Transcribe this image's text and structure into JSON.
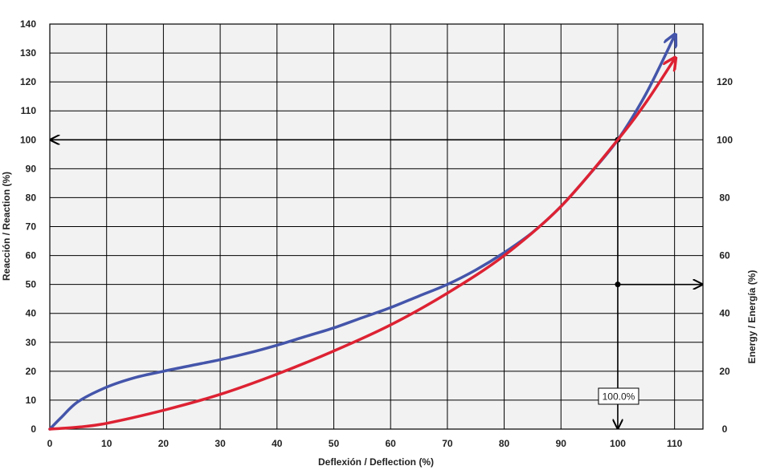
{
  "chart_data": {
    "type": "line",
    "xlabel": "Deflexión / Deflection (%)",
    "ylabel": "Reacción / Reaction (%)",
    "y2label": "Energy / Energía (%)",
    "xlim": [
      0,
      115
    ],
    "ylim": [
      0,
      140
    ],
    "y2lim": [
      0,
      140
    ],
    "x_ticks": [
      0,
      10,
      20,
      30,
      40,
      50,
      60,
      70,
      80,
      90,
      100,
      110
    ],
    "y_ticks": [
      0,
      10,
      20,
      30,
      40,
      50,
      60,
      70,
      80,
      90,
      100,
      110,
      120,
      130,
      140
    ],
    "y2_ticks": [
      0,
      20,
      40,
      60,
      80,
      100,
      120
    ],
    "grid": true,
    "plot_background": "#f2f2f2",
    "series": [
      {
        "axis": "left",
        "color": "#4455aa",
        "x": [
          0,
          2,
          5,
          10,
          15,
          20,
          25,
          30,
          35,
          40,
          45,
          50,
          55,
          60,
          65,
          70,
          75,
          80,
          85,
          90,
          95,
          100,
          105,
          110
        ],
        "y": [
          0,
          4,
          9.5,
          14.5,
          17.8,
          20,
          22,
          24,
          26.3,
          29,
          32,
          35,
          38.5,
          42,
          46,
          50,
          55,
          61,
          68,
          77,
          88,
          100,
          116,
          136
        ]
      },
      {
        "axis": "right",
        "color": "#dd2233",
        "x": [
          0,
          5,
          10,
          20,
          30,
          40,
          50,
          60,
          70,
          80,
          90,
          100,
          105,
          110
        ],
        "y": [
          0,
          0.7,
          2,
          6.5,
          12,
          19,
          27,
          36,
          47,
          60,
          77,
          100,
          113,
          128
        ]
      }
    ],
    "annotations": [
      {
        "type": "arrow-to-left-axis",
        "x": 100,
        "y": 100
      },
      {
        "type": "arrow-to-right-axis",
        "x": 100,
        "y": 50
      },
      {
        "type": "arrow-to-x-axis",
        "x": 100,
        "label": "100.0%"
      }
    ]
  }
}
